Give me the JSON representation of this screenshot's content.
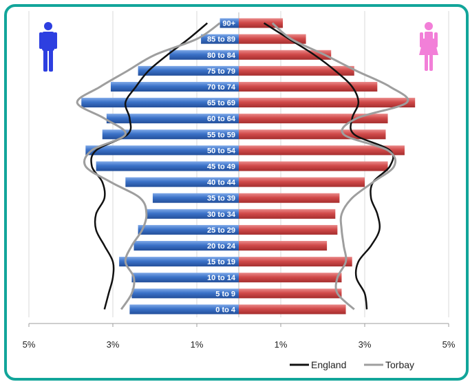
{
  "chart_data": {
    "type": "bar",
    "orientation": "horizontal",
    "subtype": "population-pyramid",
    "title": "",
    "categories": [
      "0 to 4",
      "5 to 9",
      "10 to 14",
      "15 to 19",
      "20 to 24",
      "25 to 29",
      "30 to 34",
      "35 to 39",
      "40 to 44",
      "45 to 49",
      "50 to 54",
      "55 to 59",
      "60 to 64",
      "65 to 69",
      "70 to 74",
      "75 to 79",
      "80 to 84",
      "85 to 89",
      "90+"
    ],
    "series": [
      {
        "side": "male",
        "color": "#3b72c8",
        "values": [
          2.6,
          2.55,
          2.55,
          2.85,
          2.5,
          2.4,
          2.2,
          2.05,
          2.7,
          3.4,
          3.65,
          3.25,
          3.15,
          3.75,
          3.05,
          2.4,
          1.65,
          0.9,
          0.45
        ]
      },
      {
        "side": "female",
        "color": "#d14a4a",
        "values": [
          2.55,
          2.45,
          2.45,
          2.7,
          2.1,
          2.35,
          2.3,
          2.4,
          3.0,
          3.55,
          3.95,
          3.5,
          3.55,
          4.2,
          3.3,
          2.75,
          2.2,
          1.6,
          1.05
        ]
      }
    ],
    "lines": [
      {
        "name": "England",
        "color": "#111111",
        "male": [
          3.2,
          3.1,
          3.0,
          3.0,
          3.2,
          3.4,
          3.4,
          3.2,
          3.25,
          3.5,
          3.4,
          2.65,
          2.6,
          2.7,
          2.45,
          2.15,
          1.7,
          1.2,
          0.75
        ],
        "female": [
          3.05,
          3.0,
          2.8,
          2.85,
          3.15,
          3.35,
          3.3,
          3.15,
          3.2,
          3.6,
          3.6,
          2.75,
          2.7,
          2.85,
          2.7,
          2.3,
          1.8,
          1.2,
          0.6
        ]
      },
      {
        "name": "Torbay",
        "color": "#9e9e9e",
        "male": [
          2.8,
          2.55,
          2.5,
          2.7,
          2.55,
          2.3,
          2.2,
          2.35,
          3.05,
          3.65,
          3.5,
          2.7,
          3.2,
          3.85,
          3.3,
          2.65,
          2.0,
          1.0,
          0.45
        ]
      },
      {
        "name": "Torbay-female",
        "color": "#9e9e9e",
        "female": [
          2.75,
          2.35,
          2.35,
          2.55,
          2.5,
          2.45,
          2.45,
          2.7,
          3.2,
          3.7,
          3.55,
          2.5,
          2.8,
          4.0,
          3.6,
          2.8,
          2.05,
          1.25,
          0.8
        ]
      }
    ],
    "x_ticks": [
      "5%",
      "3%",
      "1%",
      "1%",
      "3%",
      "5%"
    ],
    "xlim": [
      -5,
      5
    ],
    "grid": true,
    "legend": {
      "placement": "bottom-right",
      "entries": [
        {
          "label": "England",
          "color": "#111111"
        },
        {
          "label": "Torbay",
          "color": "#9e9e9e"
        }
      ]
    },
    "icons": {
      "male": "male-person-icon",
      "female": "female-person-icon",
      "male_color": "#2d3fe0",
      "female_color": "#f27fd8"
    }
  }
}
